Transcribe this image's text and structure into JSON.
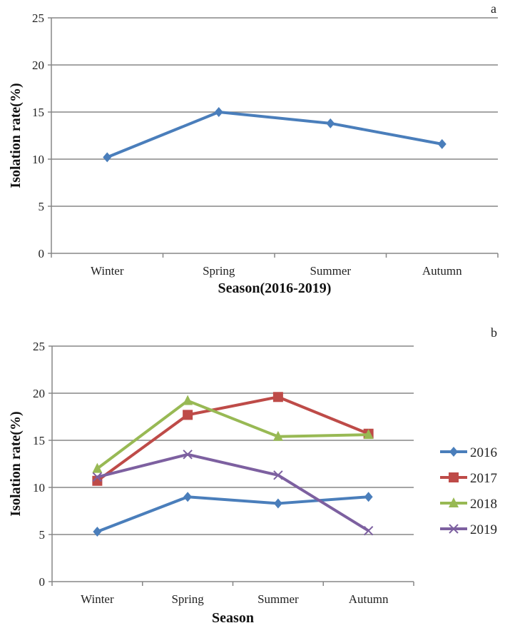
{
  "chart_data": [
    {
      "type": "line",
      "panel_label": "a",
      "categories": [
        "Winter",
        "Spring",
        "Summer",
        "Autumn"
      ],
      "series": [
        {
          "name": "2016-2019",
          "values": [
            10.2,
            15.0,
            13.8,
            11.6
          ],
          "color": "#4A7EBB",
          "marker": "diamond"
        }
      ],
      "xlabel": "Season(2016-2019)",
      "ylabel": "Isolation rate(%)",
      "ylim": [
        0,
        25
      ],
      "yticks": [
        "0",
        "5",
        "10",
        "15",
        "20",
        "25"
      ],
      "grid": true,
      "legend": "none"
    },
    {
      "type": "line",
      "panel_label": "b",
      "categories": [
        "Winter",
        "Spring",
        "Summer",
        "Autumn"
      ],
      "series": [
        {
          "name": "2016",
          "values": [
            5.3,
            9.0,
            8.3,
            9.0
          ],
          "color": "#4A7EBB",
          "marker": "diamond"
        },
        {
          "name": "2017",
          "values": [
            10.7,
            17.7,
            19.6,
            15.7
          ],
          "color": "#BE4B48",
          "marker": "square"
        },
        {
          "name": "2018",
          "values": [
            12.0,
            19.2,
            15.4,
            15.6
          ],
          "color": "#98B954",
          "marker": "triangle"
        },
        {
          "name": "2019",
          "values": [
            11.1,
            13.5,
            11.3,
            5.4
          ],
          "color": "#7D60A0",
          "marker": "x"
        }
      ],
      "xlabel": "Season",
      "ylabel": "Isolation rate(%)",
      "ylim": [
        0,
        25
      ],
      "yticks": [
        "0",
        "5",
        "10",
        "15",
        "20",
        "25"
      ],
      "grid": true,
      "legend": "right"
    }
  ]
}
